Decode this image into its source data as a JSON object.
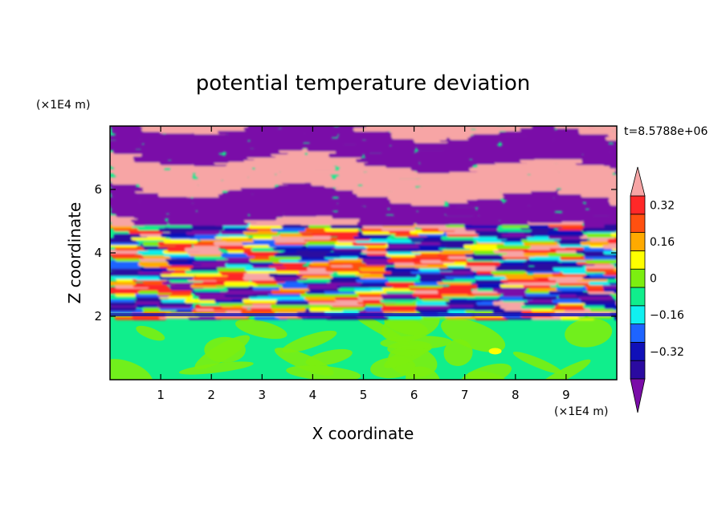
{
  "chart_data": {
    "type": "heatmap",
    "title": "potential temperature deviation",
    "xlabel": "X coordinate",
    "ylabel": "Z coordinate",
    "x_unit": "(×1E4 m)",
    "y_unit": "(×1E4 m)",
    "time_label": "t=8.5788e+06",
    "xlim": [
      0,
      10
    ],
    "ylim": [
      0,
      8
    ],
    "x_ticks": [
      1,
      2,
      3,
      4,
      5,
      6,
      7,
      8,
      9
    ],
    "y_ticks": [
      2,
      4,
      6
    ],
    "colorbar": {
      "levels": [
        -0.4,
        -0.32,
        -0.24,
        -0.16,
        -0.08,
        0,
        0.08,
        0.16,
        0.24,
        0.32,
        0.4
      ],
      "labeled_levels": [
        0.32,
        0.16,
        0,
        -0.16,
        -0.32
      ],
      "tick_labels": [
        "0.32",
        "0.16",
        "0",
        "−0.16",
        "−0.32"
      ],
      "colors": [
        "#7a0ca8",
        "#2a0aa0",
        "#1010b8",
        "#1e64ff",
        "#10f0f0",
        "#10ee8c",
        "#7cee10",
        "#ffff00",
        "#ffaa00",
        "#ff5010",
        "#ff2828",
        "#f7a5a5"
      ],
      "extend": "both"
    },
    "layers": [
      {
        "z_range": [
          0,
          1.95
        ],
        "description_value": "near zero",
        "dominant": [
          0,
          0.08
        ]
      },
      {
        "z_range": [
          1.95,
          4.9
        ],
        "description_value": "mixed",
        "dominant": [
          -0.4,
          0.4
        ]
      },
      {
        "z_range": [
          4.9,
          8
        ],
        "description_value": "alternating extremes",
        "dominant": [
          -0.4,
          0.4
        ]
      }
    ]
  }
}
